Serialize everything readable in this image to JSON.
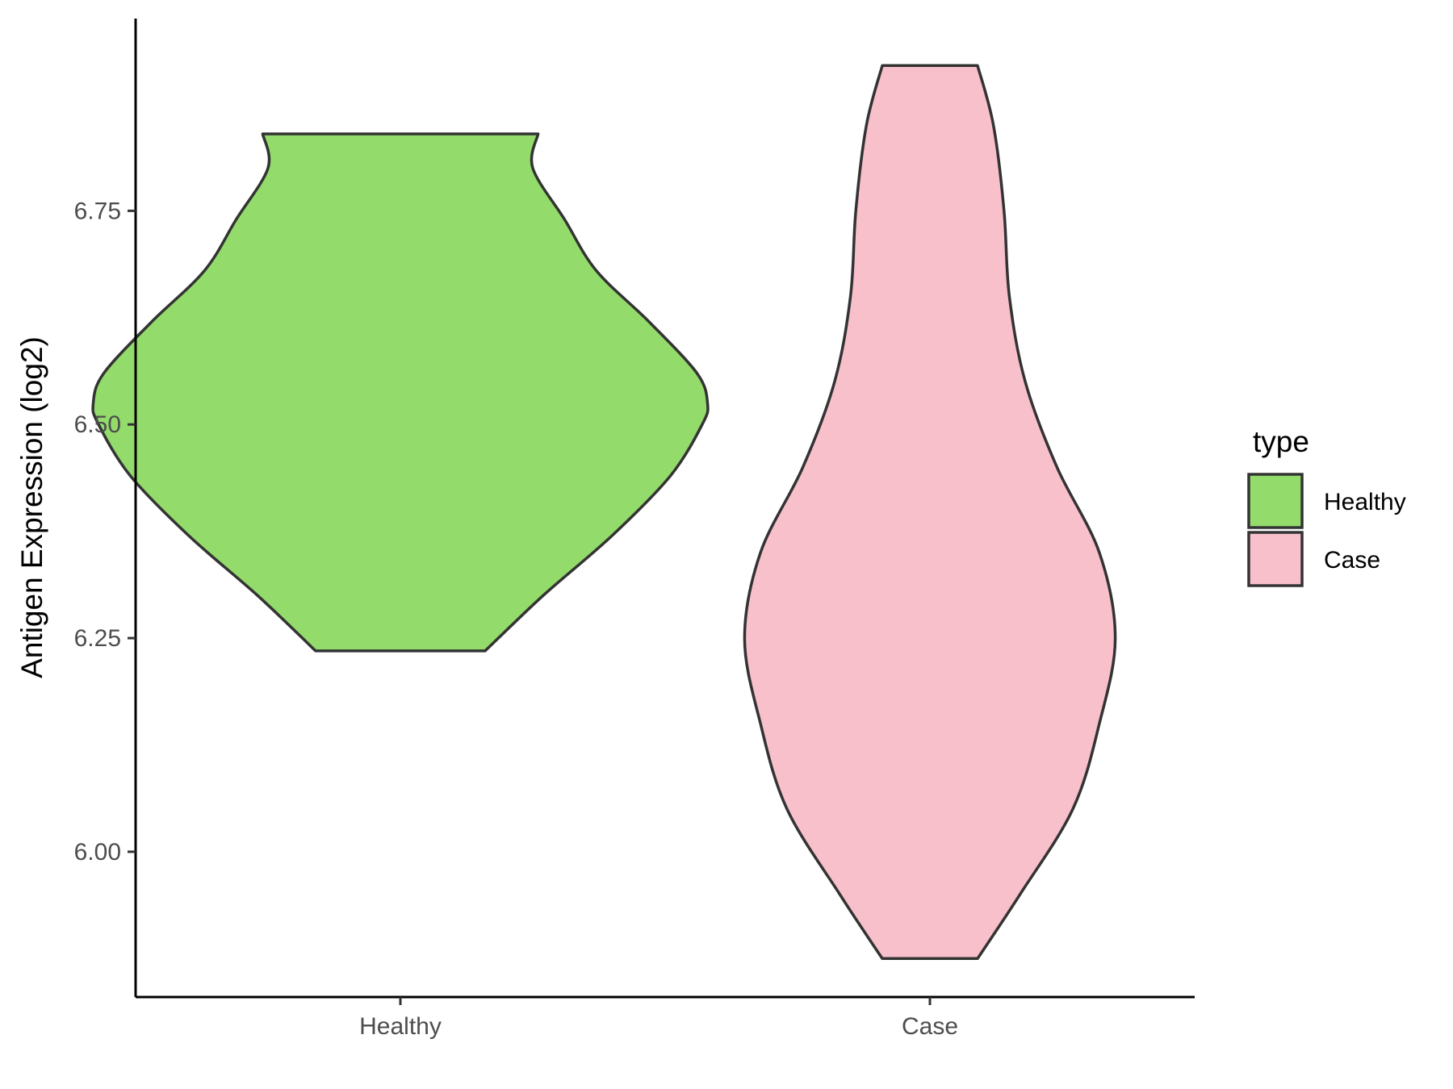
{
  "chart_data": {
    "type": "violin",
    "title": "",
    "xlabel": "",
    "ylabel": "Antigen Expression (log2)",
    "categories": [
      "Healthy",
      "Case"
    ],
    "ylim": [
      5.83,
      6.975
    ],
    "yticks": [
      6.0,
      6.25,
      6.5,
      6.75
    ],
    "ytick_labels": [
      "6.00",
      "6.25",
      "6.50",
      "6.75"
    ],
    "legend": {
      "title": "type",
      "placement": "right",
      "entries": [
        "Healthy",
        "Case"
      ]
    },
    "grid": false,
    "series": [
      {
        "name": "Healthy",
        "color": "#93dc6b",
        "min": 6.235,
        "max": 6.84,
        "profile": [
          [
            6.235,
            0.16
          ],
          [
            6.3,
            0.27
          ],
          [
            6.37,
            0.4
          ],
          [
            6.44,
            0.51
          ],
          [
            6.5,
            0.57
          ],
          [
            6.525,
            0.58
          ],
          [
            6.56,
            0.56
          ],
          [
            6.62,
            0.47
          ],
          [
            6.68,
            0.37
          ],
          [
            6.74,
            0.31
          ],
          [
            6.8,
            0.25
          ],
          [
            6.84,
            0.26
          ]
        ]
      },
      {
        "name": "Case",
        "color": "#f8c0cb",
        "min": 5.875,
        "max": 6.92,
        "profile": [
          [
            5.875,
            0.09
          ],
          [
            5.95,
            0.17
          ],
          [
            6.05,
            0.27
          ],
          [
            6.15,
            0.32
          ],
          [
            6.25,
            0.35
          ],
          [
            6.35,
            0.32
          ],
          [
            6.45,
            0.24
          ],
          [
            6.55,
            0.18
          ],
          [
            6.65,
            0.15
          ],
          [
            6.75,
            0.14
          ],
          [
            6.85,
            0.12
          ],
          [
            6.92,
            0.09
          ]
        ]
      }
    ]
  }
}
